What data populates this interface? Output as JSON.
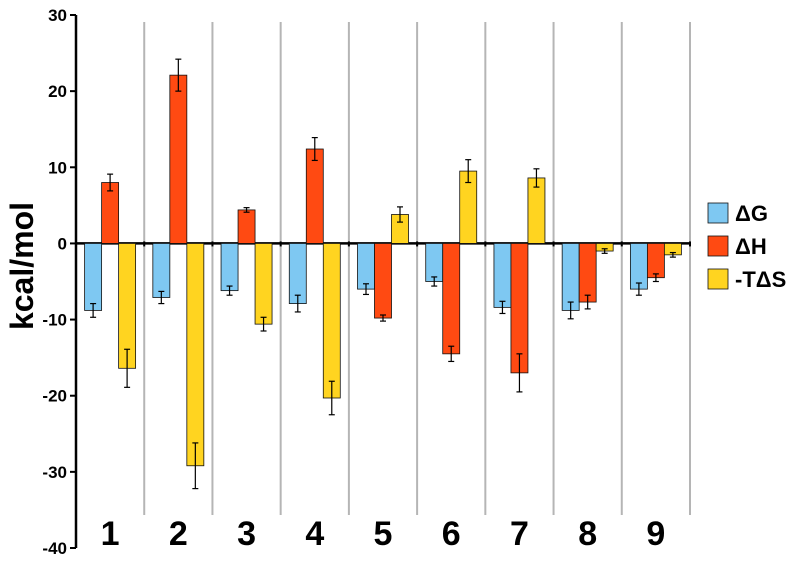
{
  "chart_data": {
    "type": "bar",
    "title": "",
    "xlabel": "",
    "ylabel": "kcal/mol",
    "ylim": [
      -40,
      30
    ],
    "yticks": [
      30,
      20,
      10,
      0,
      -10,
      -20,
      -30,
      -40
    ],
    "categories": [
      "1",
      "2",
      "3",
      "4",
      "5",
      "6",
      "7",
      "8",
      "9"
    ],
    "series": [
      {
        "name": "ΔG",
        "color": "#7EC8F2",
        "values": [
          -8.8,
          -7.1,
          -6.2,
          -7.9,
          -6.0,
          -5.0,
          -8.4,
          -8.8,
          -6.0
        ],
        "errors": [
          0.9,
          0.8,
          0.6,
          1.1,
          0.7,
          0.6,
          0.8,
          1.1,
          0.8
        ]
      },
      {
        "name": "ΔH",
        "color": "#FF4A12",
        "values": [
          8.0,
          22.1,
          4.4,
          12.4,
          -9.8,
          -14.5,
          -17.0,
          -7.7,
          -4.5
        ],
        "errors": [
          1.1,
          2.1,
          0.3,
          1.5,
          0.4,
          1.0,
          2.5,
          0.9,
          0.5
        ]
      },
      {
        "name": "-TΔS",
        "color": "#FFD420",
        "values": [
          -16.4,
          -29.2,
          -10.6,
          -20.3,
          3.8,
          9.5,
          8.6,
          -1.0,
          -1.5
        ],
        "errors": [
          2.5,
          3.0,
          0.9,
          2.2,
          1.0,
          1.5,
          1.2,
          0.3,
          0.3
        ]
      }
    ],
    "legend_position": "right",
    "grid": "vertical separators between categories"
  }
}
